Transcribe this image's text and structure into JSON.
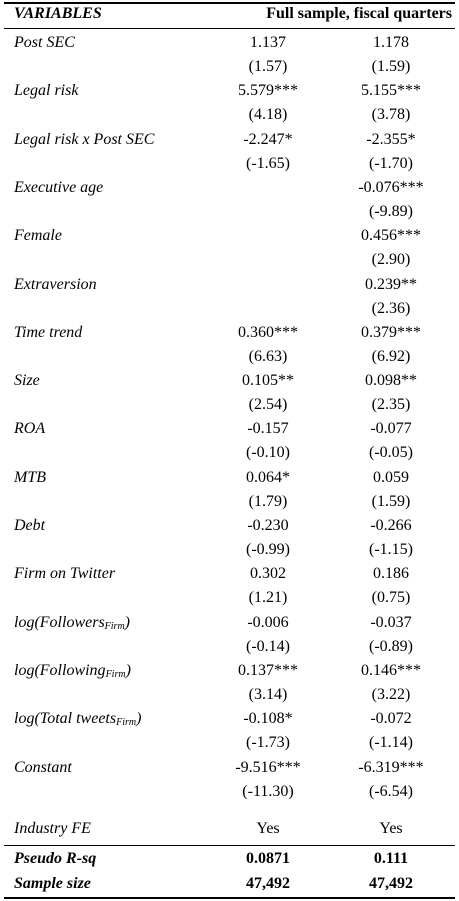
{
  "header": {
    "variables": "VARIABLES",
    "sample": "Full sample, fiscal quarters"
  },
  "rows": [
    {
      "label": "Post SEC",
      "cells": [
        [
          "1.137",
          "(1.57)"
        ],
        [
          "1.178",
          "(1.59)"
        ]
      ]
    },
    {
      "label": "Legal risk",
      "cells": [
        [
          "5.579***",
          "(4.18)"
        ],
        [
          "5.155***",
          "(3.78)"
        ]
      ]
    },
    {
      "label": "Legal risk x Post SEC",
      "cells": [
        [
          "-2.247*",
          "(-1.65)"
        ],
        [
          "-2.355*",
          "(-1.70)"
        ]
      ]
    },
    {
      "label": "Executive age",
      "cells": [
        null,
        [
          "-0.076***",
          "(-9.89)"
        ]
      ]
    },
    {
      "label": "Female",
      "cells": [
        null,
        [
          "0.456***",
          "(2.90)"
        ]
      ]
    },
    {
      "label": "Extraversion",
      "cells": [
        null,
        [
          "0.239**",
          "(2.36)"
        ]
      ]
    },
    {
      "label": "Time trend",
      "cells": [
        [
          "0.360***",
          "(6.63)"
        ],
        [
          "0.379***",
          "(6.92)"
        ]
      ]
    },
    {
      "label": "Size",
      "cells": [
        [
          "0.105**",
          "(2.54)"
        ],
        [
          "0.098**",
          "(2.35)"
        ]
      ]
    },
    {
      "label": "ROA",
      "cells": [
        [
          "-0.157",
          "(-0.10)"
        ],
        [
          "-0.077",
          "(-0.05)"
        ]
      ]
    },
    {
      "label": "MTB",
      "cells": [
        [
          "0.064*",
          "(1.79)"
        ],
        [
          "0.059",
          "(1.59)"
        ]
      ]
    },
    {
      "label": "Debt",
      "cells": [
        [
          "-0.230",
          "(-0.99)"
        ],
        [
          "-0.266",
          "(-1.15)"
        ]
      ]
    },
    {
      "label": "Firm on Twitter",
      "cells": [
        [
          "0.302",
          "(1.21)"
        ],
        [
          "0.186",
          "(0.75)"
        ]
      ]
    },
    {
      "label": "log(Followers",
      "label_sub": "Firm",
      "label_end": ")",
      "cells": [
        [
          "-0.006",
          "(-0.14)"
        ],
        [
          "-0.037",
          "(-0.89)"
        ]
      ]
    },
    {
      "label": "log(Following",
      "label_sub": "Firm",
      "label_end": ")",
      "cells": [
        [
          "0.137***",
          "(3.14)"
        ],
        [
          "0.146***",
          "(3.22)"
        ]
      ]
    },
    {
      "label": "log(Total tweets",
      "label_sub": "Firm",
      "label_end": ")",
      "cells": [
        [
          "-0.108*",
          "(-1.73)"
        ],
        [
          "-0.072",
          "(-1.14)"
        ]
      ]
    },
    {
      "label": "Constant",
      "cells": [
        [
          "-9.516***",
          "(-11.30)"
        ],
        [
          "-6.319***",
          "(-6.54)"
        ]
      ]
    }
  ],
  "industry_fe": {
    "label": "Industry FE",
    "cells": [
      "Yes",
      "Yes"
    ]
  },
  "footer": [
    {
      "label": "Pseudo R-sq",
      "cells": [
        "0.0871",
        "0.111"
      ]
    },
    {
      "label": "Sample size",
      "cells": [
        "47,492",
        "47,492"
      ]
    }
  ]
}
